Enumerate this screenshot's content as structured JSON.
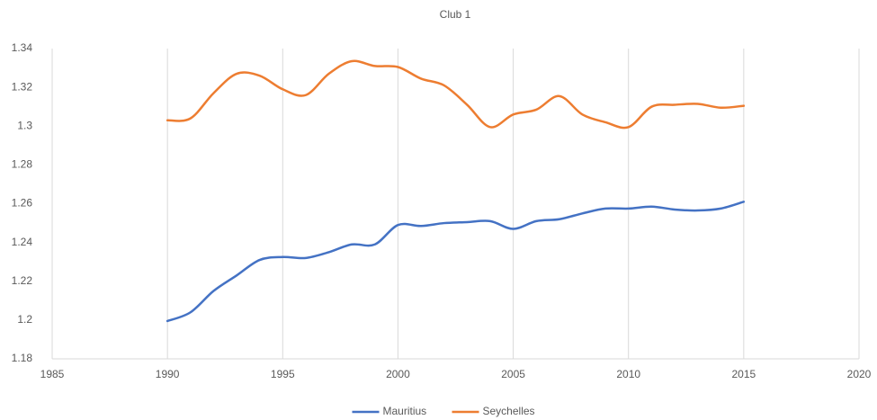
{
  "chart_data": {
    "type": "line",
    "title": "Club 1",
    "x": [
      1990,
      1991,
      1992,
      1993,
      1994,
      1995,
      1996,
      1997,
      1998,
      1999,
      2000,
      2001,
      2002,
      2003,
      2004,
      2005,
      2006,
      2007,
      2008,
      2009,
      2010,
      2011,
      2012,
      2013,
      2014,
      2015
    ],
    "series": [
      {
        "name": "Mauritius",
        "color": "#4472c4",
        "values": [
          1.1995,
          1.204,
          1.215,
          1.223,
          1.231,
          1.2325,
          1.232,
          1.235,
          1.239,
          1.239,
          1.249,
          1.2485,
          1.25,
          1.2505,
          1.251,
          1.247,
          1.251,
          1.252,
          1.255,
          1.2575,
          1.2575,
          1.2585,
          1.257,
          1.2565,
          1.2575,
          1.261
        ]
      },
      {
        "name": "Seychelles",
        "color": "#ed7d31",
        "values": [
          1.303,
          1.304,
          1.317,
          1.327,
          1.326,
          1.319,
          1.316,
          1.327,
          1.3335,
          1.331,
          1.3305,
          1.3245,
          1.321,
          1.311,
          1.2995,
          1.306,
          1.3085,
          1.3155,
          1.306,
          1.302,
          1.2995,
          1.31,
          1.311,
          1.3115,
          1.3095,
          1.3105
        ]
      }
    ],
    "xlim": [
      1985,
      2020
    ],
    "xticks": [
      1985,
      1990,
      1995,
      2000,
      2005,
      2010,
      2015,
      2020
    ],
    "ylim": [
      1.18,
      1.34
    ],
    "yticks": [
      1.18,
      1.2,
      1.22,
      1.24,
      1.26,
      1.28,
      1.3,
      1.32,
      1.34
    ],
    "grid": "x",
    "smooth": true,
    "legend": "bottom"
  }
}
